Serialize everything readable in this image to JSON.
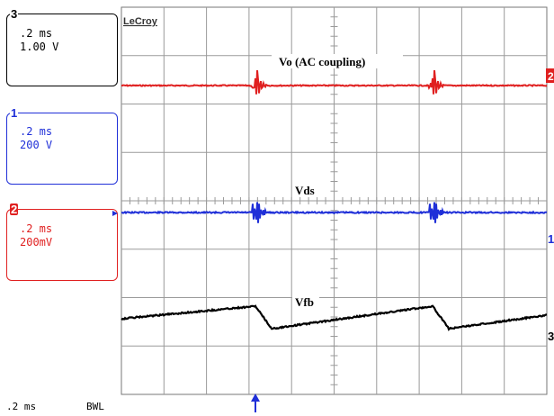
{
  "brand": "LeCroy",
  "panels": {
    "ch3": {
      "number": "3",
      "timebase": ".2 ms",
      "scale": "1.00 V",
      "color": "#000000"
    },
    "ch1": {
      "number": "1",
      "timebase": ".2 ms",
      "scale": "200 V",
      "color": "#1f2fd8"
    },
    "ch2": {
      "number": "2",
      "timebase": ".2 ms",
      "scale": "200mV",
      "color": "#e02020"
    }
  },
  "traces": {
    "vo": {
      "label": "Vo (AC coupling)",
      "color": "#e02020"
    },
    "vds": {
      "label": "Vds",
      "color": "#1f2fd8"
    },
    "vfb": {
      "label": "Vfb",
      "color": "#000000"
    }
  },
  "markers": {
    "right_ch2": "2",
    "right_ch1": "1",
    "right_ch3": "3"
  },
  "status": {
    "timebase": ".2 ms",
    "bandwidth_limit": "BWL"
  },
  "grid": {
    "horizontal_divisions": 10,
    "vertical_divisions": 8
  }
}
